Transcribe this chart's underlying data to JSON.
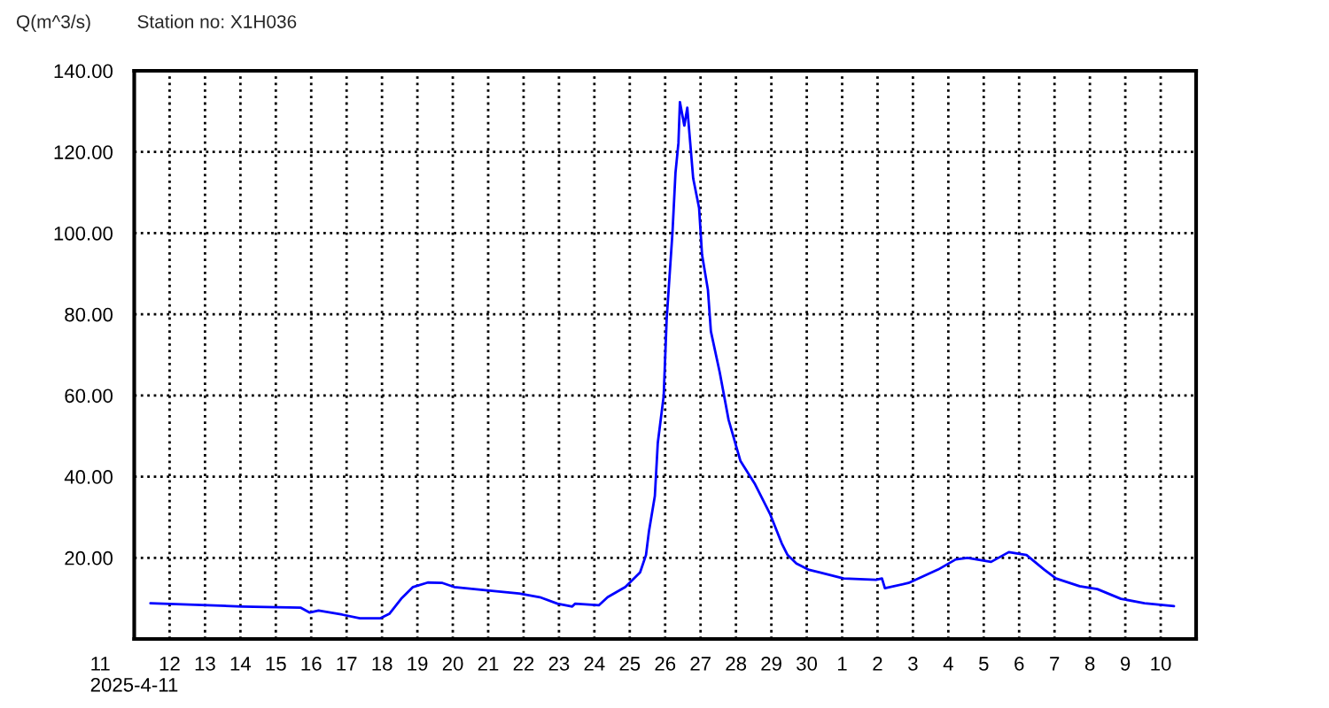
{
  "chart_data": {
    "type": "line",
    "title": "Station no: X1H036",
    "ylabel": "Q(m^3/s)",
    "x": [
      "2025-04-11T11:00",
      "2025-04-14T01:00",
      "2025-04-15T17:00",
      "2025-04-15T23:00",
      "2025-04-16T05:00",
      "2025-04-16T21:00",
      "2025-04-17T09:00",
      "2025-04-17T23:00",
      "2025-04-18T05:00",
      "2025-04-18T13:00",
      "2025-04-18T21:00",
      "2025-04-19T07:00",
      "2025-04-19T17:00",
      "2025-04-20T01:00",
      "2025-04-21T01:00",
      "2025-04-21T21:00",
      "2025-04-22T11:00",
      "2025-04-22T23:00",
      "2025-04-23T09:00",
      "2025-04-23T11:00",
      "2025-04-24T03:00",
      "2025-04-24T09:00",
      "2025-04-24T21:00",
      "2025-04-25T07:00",
      "2025-04-25T11:00",
      "2025-04-25T13:00",
      "2025-04-25T17:00",
      "2025-04-25T19:00",
      "2025-04-25T23:00",
      "2025-04-26T01:00",
      "2025-04-26T05:00",
      "2025-04-26T07:00",
      "2025-04-26T09:00",
      "2025-04-26T10:00",
      "2025-04-26T13:00",
      "2025-04-26T15:00",
      "2025-04-26T17:00",
      "2025-04-26T19:00",
      "2025-04-26T23:00",
      "2025-04-27T01:00",
      "2025-04-27T05:00",
      "2025-04-27T07:00",
      "2025-04-27T13:00",
      "2025-04-27T19:00",
      "2025-04-28T03:00",
      "2025-04-28T13:00",
      "2025-04-28T23:00",
      "2025-04-29T07:00",
      "2025-04-29T11:00",
      "2025-04-29T17:00",
      "2025-04-30T01:00",
      "2025-04-30T09:00",
      "2025-05-01T01:00",
      "2025-05-01T23:00",
      "2025-05-02T03:00",
      "2025-05-02T05:00",
      "2025-05-02T21:00",
      "2025-05-03T17:00",
      "2025-05-04T05:00",
      "2025-05-04T13:00",
      "2025-05-05T05:00",
      "2025-05-05T17:00",
      "2025-05-06T05:00",
      "2025-05-06T17:00",
      "2025-05-07T01:00",
      "2025-05-07T17:00",
      "2025-05-08T05:00",
      "2025-05-08T21:00",
      "2025-05-09T13:00",
      "2025-05-10T09:00"
    ],
    "series": [
      {
        "color": "#0000ff",
        "values": [
          8.8,
          8.0,
          7.7,
          6.5,
          7.0,
          6.0,
          5.1,
          5.1,
          6.2,
          9.9,
          12.8,
          13.9,
          13.8,
          12.8,
          11.9,
          11.2,
          10.3,
          8.7,
          8.0,
          8.7,
          8.3,
          10.3,
          12.8,
          16.4,
          20.7,
          26.5,
          35.2,
          48.3,
          59.9,
          78.7,
          100.4,
          114.9,
          122.2,
          132.3,
          126.5,
          130.9,
          122.2,
          113.5,
          106.2,
          94.7,
          86.0,
          75.8,
          65.7,
          54.0,
          43.9,
          38.1,
          30.9,
          23.6,
          20.7,
          18.6,
          17.1,
          16.4,
          14.9,
          14.6,
          14.9,
          12.5,
          13.8,
          17.1,
          19.6,
          20.0,
          19.0,
          21.4,
          20.7,
          17.1,
          14.9,
          13.0,
          12.3,
          9.9,
          8.8,
          8.1
        ]
      }
    ],
    "xlim": [
      "2025-04-11",
      "2025-05-11"
    ],
    "xticks": [
      {
        "value": "2025-04-11",
        "label": "11\n2025-4-11"
      },
      {
        "value": "2025-04-12",
        "label": "12"
      },
      {
        "value": "2025-04-13",
        "label": "13"
      },
      {
        "value": "2025-04-14",
        "label": "14"
      },
      {
        "value": "2025-04-15",
        "label": "15"
      },
      {
        "value": "2025-04-16",
        "label": "16"
      },
      {
        "value": "2025-04-17",
        "label": "17"
      },
      {
        "value": "2025-04-18",
        "label": "18"
      },
      {
        "value": "2025-04-19",
        "label": "19"
      },
      {
        "value": "2025-04-20",
        "label": "20"
      },
      {
        "value": "2025-04-21",
        "label": "21"
      },
      {
        "value": "2025-04-22",
        "label": "22"
      },
      {
        "value": "2025-04-23",
        "label": "23"
      },
      {
        "value": "2025-04-24",
        "label": "24"
      },
      {
        "value": "2025-04-25",
        "label": "25"
      },
      {
        "value": "2025-04-26",
        "label": "26"
      },
      {
        "value": "2025-04-27",
        "label": "27"
      },
      {
        "value": "2025-04-28",
        "label": "28"
      },
      {
        "value": "2025-04-29",
        "label": "29"
      },
      {
        "value": "2025-04-30",
        "label": "30"
      },
      {
        "value": "2025-05-01",
        "label": "1"
      },
      {
        "value": "2025-05-02",
        "label": "2"
      },
      {
        "value": "2025-05-03",
        "label": "3"
      },
      {
        "value": "2025-05-04",
        "label": "4"
      },
      {
        "value": "2025-05-05",
        "label": "5"
      },
      {
        "value": "2025-05-06",
        "label": "6"
      },
      {
        "value": "2025-05-07",
        "label": "7"
      },
      {
        "value": "2025-05-08",
        "label": "8"
      },
      {
        "value": "2025-05-09",
        "label": "9"
      },
      {
        "value": "2025-05-10",
        "label": "10"
      }
    ],
    "ylim": [
      0,
      140
    ],
    "yticks": [
      {
        "value": 20,
        "label": "20.00"
      },
      {
        "value": 40,
        "label": "40.00"
      },
      {
        "value": 60,
        "label": "60.00"
      },
      {
        "value": 80,
        "label": "80.00"
      },
      {
        "value": 100,
        "label": "100.00"
      },
      {
        "value": 120,
        "label": "120.00"
      },
      {
        "value": 140,
        "label": "140.00"
      }
    ],
    "grid": true,
    "line_style": "solid",
    "marker": "none",
    "legend": false
  }
}
